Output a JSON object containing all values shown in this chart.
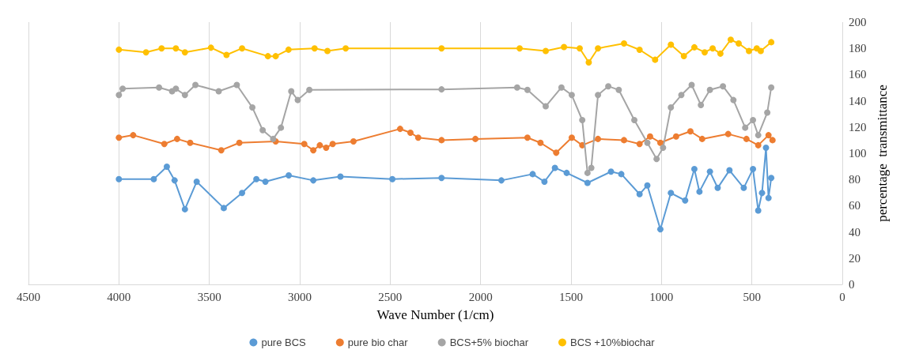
{
  "chart_data": {
    "type": "line",
    "xlabel": "Wave Number (1/cm)",
    "ylabel": "percentage  transmittance",
    "xlim": [
      4500,
      0
    ],
    "xticks": [
      4500,
      4000,
      3500,
      3000,
      2500,
      2000,
      1500,
      1000,
      500,
      0
    ],
    "ylim": [
      0,
      200
    ],
    "yticks": [
      0,
      20,
      40,
      60,
      80,
      100,
      120,
      140,
      160,
      180,
      200
    ],
    "grid": "x",
    "legend": "bottom",
    "marker": "circle",
    "line_style": "solid",
    "series": [
      {
        "name": "pure BCS",
        "color": "#5b9bd5",
        "x": [
          4000,
          3807,
          3735,
          3692,
          3635,
          3570,
          3420,
          3319,
          3240,
          3190,
          3061,
          2925,
          2775,
          2488,
          2216,
          1885,
          1712,
          1647,
          1589,
          1524,
          1409,
          1279,
          1222,
          1121,
          1078,
          1006,
          948,
          869,
          818,
          790,
          732,
          689,
          624,
          545,
          494,
          465,
          444,
          422,
          408,
          393
        ],
        "values": [
          80.3,
          80.3,
          89.8,
          79.3,
          57.3,
          78.3,
          58.2,
          69.7,
          80.3,
          78.3,
          83.1,
          79.3,
          82.2,
          80.3,
          81.2,
          79.3,
          84.1,
          78.3,
          88.9,
          85,
          77.4,
          86,
          84.1,
          68.8,
          75.5,
          42,
          69.7,
          64,
          87.9,
          70.7,
          86,
          73.6,
          87,
          73.6,
          87.9,
          56.3,
          69.7,
          104.2,
          65.9,
          81.2
        ]
      },
      {
        "name": "pure bio char",
        "color": "#ed7d31",
        "x": [
          4000,
          3921,
          3749,
          3678,
          3606,
          3434,
          3334,
          3133,
          2975,
          2925,
          2889,
          2854,
          2818,
          2703,
          2445,
          2388,
          2345,
          2216,
          2029,
          1741,
          1669,
          1582,
          1496,
          1438,
          1351,
          1207,
          1121,
          1063,
          1006,
          919,
          840,
          775,
          631,
          530,
          465,
          408,
          386
        ],
        "values": [
          111.9,
          113.8,
          107.1,
          110.9,
          108,
          102.3,
          108,
          109,
          107.1,
          102.3,
          106.1,
          104.2,
          107.1,
          109,
          118.6,
          115.7,
          111.9,
          110,
          110.9,
          111.9,
          108,
          100.4,
          111.9,
          106.1,
          110.9,
          110,
          107.1,
          112.8,
          108,
          112.8,
          116.7,
          110.9,
          114.7,
          110.9,
          106.1,
          113.8,
          110
        ]
      },
      {
        "name": "BCS+5% biochar",
        "color": "#a5a5a5",
        "x": [
          4000,
          3979,
          3778,
          3706,
          3685,
          3635,
          3577,
          3448,
          3348,
          3262,
          3205,
          3147,
          3104,
          3047,
          3011,
          2947,
          2216,
          1798,
          1741,
          1640,
          1553,
          1496,
          1438,
          1409,
          1388,
          1351,
          1294,
          1236,
          1150,
          1078,
          1027,
          991,
          948,
          890,
          833,
          782,
          732,
          660,
          602,
          537,
          494,
          465,
          415,
          393
        ],
        "values": [
          144.4,
          149.2,
          150.2,
          147.3,
          149.2,
          144.4,
          152.1,
          147.3,
          152.1,
          134.9,
          117.6,
          110.9,
          119.5,
          147.3,
          140.6,
          148.3,
          148.7,
          150.2,
          148.3,
          135.8,
          150.2,
          144.4,
          125.3,
          85,
          88.9,
          144.4,
          151.1,
          148.3,
          125.3,
          108,
          95.6,
          104.2,
          134.9,
          144.4,
          152.1,
          136.8,
          148.3,
          151.1,
          140.6,
          119.5,
          125.3,
          113.8,
          131,
          150.2
        ]
      },
      {
        "name": "BCS +10%biochar",
        "color": "#ffc000",
        "x": [
          4000,
          3850,
          3764,
          3685,
          3635,
          3491,
          3405,
          3319,
          3176,
          3133,
          3062,
          2918,
          2847,
          2746,
          2216,
          1784,
          1640,
          1539,
          1452,
          1402,
          1351,
          1207,
          1121,
          1035,
          948,
          876,
          818,
          761,
          717,
          674,
          617,
          573,
          516,
          473,
          451,
          393
        ],
        "values": [
          179,
          177,
          180,
          180,
          177,
          180.5,
          175,
          180,
          174,
          174,
          179,
          180,
          178,
          180,
          180,
          180,
          178,
          181,
          180,
          169.3,
          180,
          183.7,
          178.9,
          171.3,
          182.8,
          174.1,
          180.8,
          177,
          180,
          176,
          186.6,
          183.7,
          178,
          180,
          178,
          184.7
        ]
      }
    ]
  }
}
